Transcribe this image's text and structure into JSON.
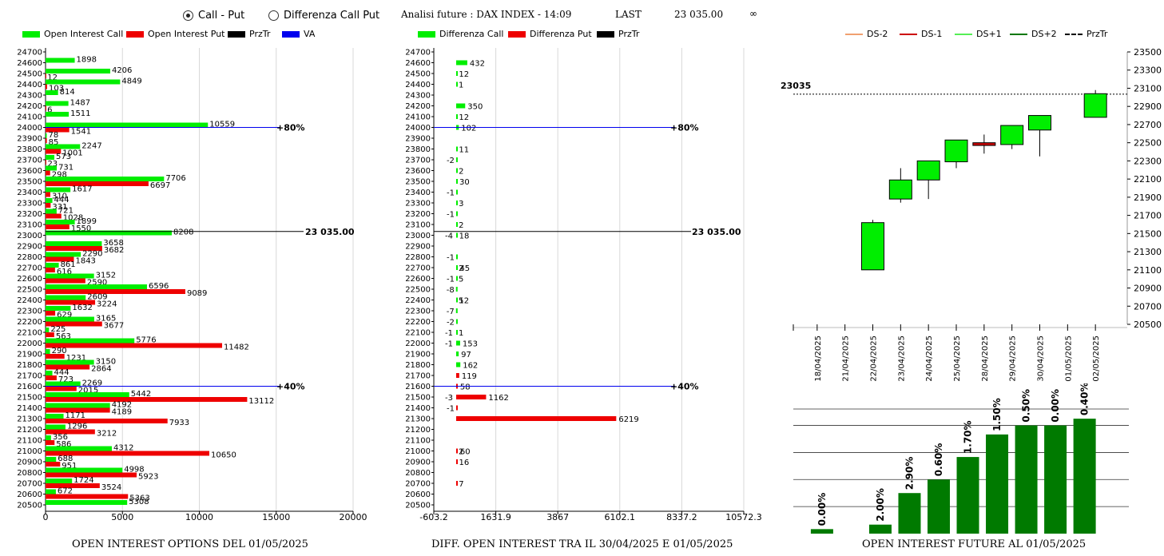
{
  "header": {
    "radio_options": [
      {
        "label": "Call - Put",
        "selected": true
      },
      {
        "label": "Differenza Call Put",
        "selected": false
      }
    ],
    "title": "Analisi future : DAX INDEX - 14:09",
    "last_label": "LAST",
    "last_value": "23 035.00",
    "infinity": "∞"
  },
  "colors": {
    "green": "#00ee00",
    "red": "#ee0000",
    "price_line": "#000000",
    "va_line": "#0000ee",
    "candle_green": "#00ee00",
    "candle_red": "#cc0000",
    "bar_green": "#007a00"
  },
  "legends": {
    "left": [
      "Open Interest Call",
      "Open Interest Put",
      "PrzTr",
      "VA"
    ],
    "middle": [
      "Differenza Call",
      "Differenza Put",
      "PrzTr"
    ],
    "right": [
      "DS-2",
      "DS-1",
      "DS+1",
      "DS+2",
      "PrzTr"
    ]
  },
  "titles": {
    "left": "OPEN INTEREST OPTIONS DEL 01/05/2025",
    "middle": "DIFF. OPEN INTEREST TRA IL 30/04/2025 E 01/05/2025",
    "right": "OPEN INTEREST FUTURE AL 01/05/2025"
  },
  "chart_data": [
    {
      "type": "bar",
      "orientation": "horizontal",
      "strikes": [
        24700,
        24600,
        24500,
        24400,
        24300,
        24200,
        24100,
        24000,
        23900,
        23800,
        23700,
        23600,
        23500,
        23400,
        23300,
        23200,
        23100,
        23000,
        22900,
        22800,
        22700,
        22600,
        22500,
        22400,
        22300,
        22200,
        22100,
        22000,
        21900,
        21800,
        21700,
        21600,
        21500,
        21400,
        21300,
        21200,
        21100,
        21000,
        20900,
        20800,
        20700,
        20600,
        20500
      ],
      "series": [
        {
          "name": "Open Interest Call",
          "values": [
            null,
            1898,
            4206,
            4849,
            814,
            1487,
            1511,
            10559,
            78,
            2247,
            573,
            731,
            7706,
            1617,
            444,
            721,
            1899,
            8208,
            3658,
            2290,
            861,
            3152,
            6596,
            2609,
            1632,
            3165,
            225,
            5776,
            290,
            3150,
            444,
            2269,
            5442,
            4192,
            1171,
            1296,
            356,
            4312,
            688,
            4998,
            1724,
            672,
            5308
          ]
        },
        {
          "name": "Open Interest Put",
          "values": [
            null,
            null,
            12,
            103,
            null,
            6,
            null,
            1541,
            85,
            1001,
            23,
            298,
            6697,
            310,
            331,
            1028,
            1550,
            null,
            3682,
            1843,
            616,
            2590,
            9089,
            3224,
            629,
            3677,
            563,
            11482,
            1231,
            2864,
            723,
            2015,
            13112,
            4189,
            7933,
            3212,
            586,
            10650,
            951,
            5923,
            3524,
            5363,
            null
          ]
        }
      ],
      "price_line": {
        "value": 23035,
        "label": "23 035.00"
      },
      "va_lines": [
        {
          "strike": 24000,
          "label": "80%"
        },
        {
          "strike": 21600,
          "label": "40%"
        }
      ],
      "xlim": [
        0,
        20000
      ],
      "xticks": [
        "0",
        "5000",
        "10000",
        "15000",
        "20000"
      ]
    },
    {
      "type": "bar",
      "orientation": "horizontal",
      "strikes": [
        24700,
        24600,
        24500,
        24400,
        24300,
        24200,
        24100,
        24000,
        23900,
        23800,
        23700,
        23600,
        23500,
        23400,
        23300,
        23200,
        23100,
        23000,
        22900,
        22800,
        22700,
        22600,
        22500,
        22400,
        22300,
        22200,
        22100,
        22000,
        21900,
        21800,
        21700,
        21600,
        21500,
        21400,
        21300,
        21200,
        21100,
        21000,
        20900,
        20800,
        20700,
        20600,
        20500
      ],
      "values": [
        null,
        432,
        12,
        1,
        null,
        350,
        12,
        102,
        null,
        11,
        -2,
        2,
        30,
        -1,
        3,
        -1,
        2,
        18,
        null,
        -1,
        45,
        -1,
        -8,
        12,
        -7,
        -2,
        1,
        153,
        97,
        162,
        119,
        58,
        1162,
        -1,
        6219,
        null,
        null,
        60,
        16,
        null,
        7,
        null,
        null
      ],
      "labels": [
        null,
        "432",
        "12",
        "1",
        null,
        "350",
        "12",
        "102",
        null,
        "11",
        "-2",
        "2",
        "30",
        "-1",
        "3",
        "-1",
        "2",
        "18",
        null,
        "-1",
        "45",
        "-1",
        "-8",
        "12",
        "-7",
        "-2",
        "1",
        "153",
        "97",
        "162",
        "119",
        "58",
        "1162",
        "-1",
        "6219",
        null,
        null,
        "60",
        "16",
        null,
        "7",
        null,
        null
      ],
      "extra_labels": [
        {
          "strike": 23000,
          "text": "-4"
        },
        {
          "strike": 22700,
          "text": "2"
        },
        {
          "strike": 22600,
          "text": "5"
        },
        {
          "strike": 22400,
          "text": "5"
        },
        {
          "strike": 22100,
          "text": "-1"
        },
        {
          "strike": 22000,
          "text": "-1"
        },
        {
          "strike": 21500,
          "text": "-3"
        },
        {
          "strike": 21000,
          "text": "2"
        }
      ],
      "price_line": {
        "value": 23035,
        "label": "23 035.00"
      },
      "va_lines": [
        {
          "strike": 24000,
          "label": "80%"
        },
        {
          "strike": 21600,
          "label": "40%"
        }
      ],
      "xlim": [
        -603.2,
        10572.3
      ],
      "xticks": [
        "-603.2",
        "1631.9",
        "3867",
        "6102.1",
        "8337.2",
        "10572.3"
      ]
    },
    {
      "type": "candlestick",
      "dates": [
        "18/04/2025",
        "21/04/2025",
        "22/04/2025",
        "23/04/2025",
        "24/04/2025",
        "25/04/2025",
        "28/04/2025",
        "29/04/2025",
        "30/04/2025",
        "01/05/2025",
        "02/05/2025"
      ],
      "candles": [
        null,
        null,
        {
          "open": 21100,
          "close": 21620,
          "high": 21650,
          "low": 21100
        },
        {
          "open": 21880,
          "close": 22090,
          "high": 22220,
          "low": 21840
        },
        {
          "open": 22090,
          "close": 22300,
          "high": 22300,
          "low": 21880
        },
        {
          "open": 22290,
          "close": 22530,
          "high": 22530,
          "low": 22220
        },
        {
          "open": 22500,
          "close": 22470,
          "high": 22590,
          "low": 22380
        },
        {
          "open": 22480,
          "close": 22690,
          "high": 22690,
          "low": 22430
        },
        {
          "open": 22640,
          "close": 22800,
          "high": 22800,
          "low": 22350
        },
        null,
        {
          "open": 22780,
          "close": 23040,
          "high": 23080,
          "low": 22780
        }
      ],
      "price_line": {
        "value": 23035,
        "label": "23035"
      },
      "ylim": [
        20500,
        23500
      ],
      "yticks": [
        20500,
        20700,
        20900,
        21100,
        21300,
        21500,
        21700,
        21900,
        22100,
        22300,
        22500,
        22700,
        22900,
        23100,
        23300,
        23500
      ]
    },
    {
      "type": "bar",
      "values": [
        0.1,
        null,
        0.2,
        0.9,
        1.2,
        1.7,
        2.2,
        2.4,
        2.4,
        2.55
      ],
      "labels": [
        "0.00%",
        "",
        "2.00%",
        "2.90%",
        "0.60%",
        "1.70%",
        "1.50%",
        "0.50%",
        "0.00%",
        "0.40%"
      ],
      "ylim": [
        0,
        2.8
      ]
    }
  ]
}
